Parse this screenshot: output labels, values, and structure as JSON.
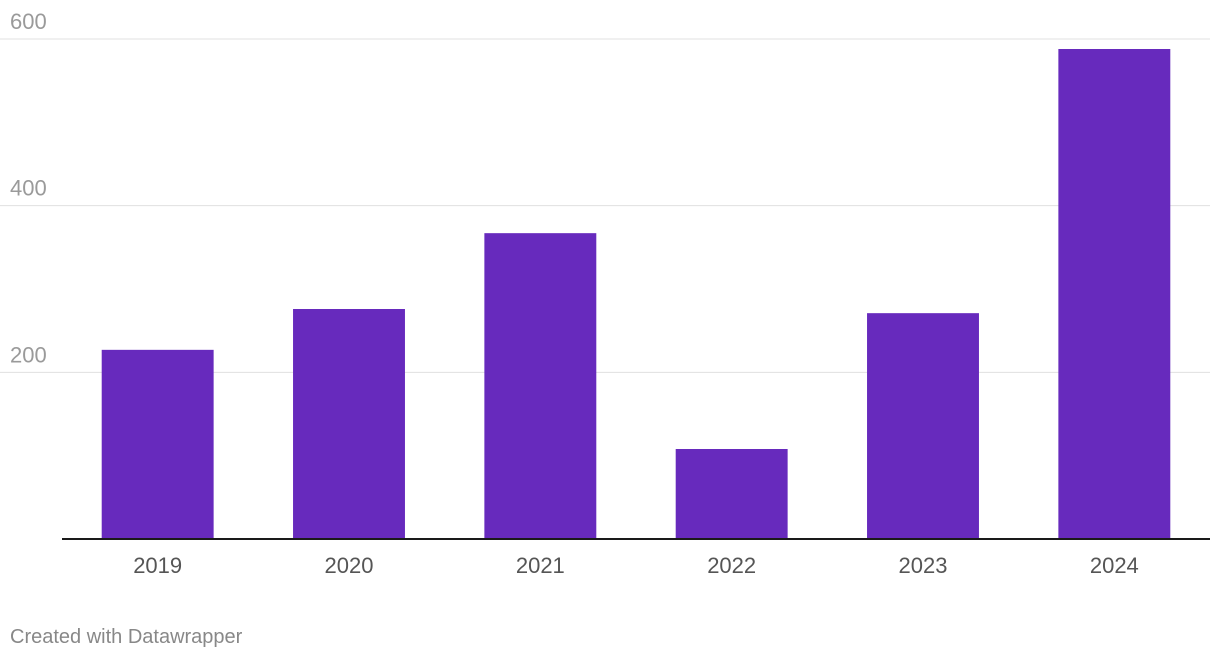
{
  "chart_data": {
    "type": "bar",
    "categories": [
      "2019",
      "2020",
      "2021",
      "2022",
      "2023",
      "2024"
    ],
    "values": [
      227,
      276,
      367,
      108,
      271,
      588
    ],
    "title": "",
    "xlabel": "",
    "ylabel": "",
    "ylim": [
      0,
      600
    ],
    "yticks": [
      "200",
      "400",
      "600"
    ],
    "grid": true,
    "legend": "none",
    "bar_color": "#672ABD"
  },
  "footer": {
    "credit": "Created with Datawrapper"
  }
}
